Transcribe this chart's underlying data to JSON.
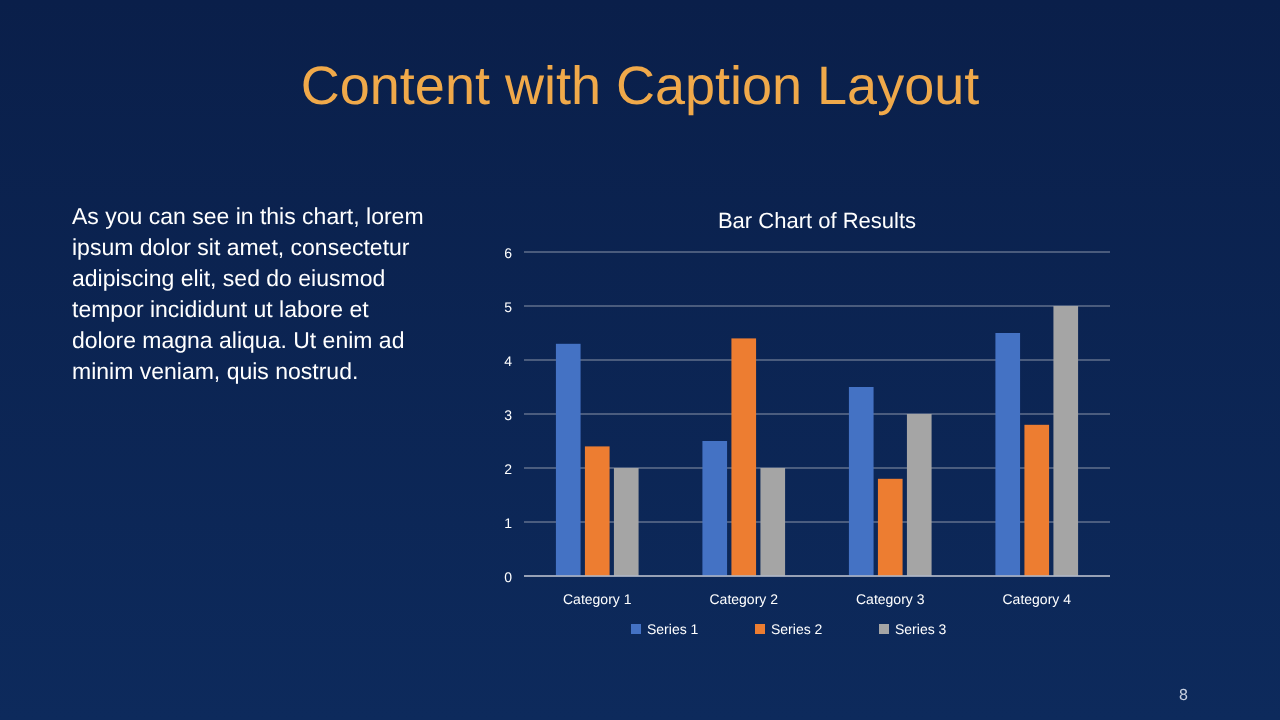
{
  "chart_data": {
    "type": "bar",
    "title": "Content with Caption Layout",
    "subtitle": "Bar Chart of Results",
    "annotations": [
      "As you can see in this chart, lorem ipsum dolor sit amet, consectetur adipiscing elit, sed do eiusmod tempor incididunt ut labore et dolore magna aliqua. Ut enim ad minim veniam, quis nostrud.",
      "8"
    ],
    "categories": [
      "Category 1",
      "Category 2",
      "Category 3",
      "Category 4"
    ],
    "series": [
      {
        "name": "Series 1",
        "color": "#4472c4",
        "values": [
          4.3,
          2.5,
          3.5,
          4.5
        ]
      },
      {
        "name": "Series 2",
        "color": "#ed7d31",
        "values": [
          2.4,
          4.4,
          1.8,
          2.8
        ]
      },
      {
        "name": "Series 3",
        "color": "#a5a5a5",
        "values": [
          2,
          2,
          3,
          5
        ]
      }
    ],
    "ylim": [
      0,
      6
    ],
    "yticks": [
      0,
      1,
      2,
      3,
      4,
      5,
      6
    ],
    "grid": "y",
    "legend": "bottom"
  }
}
